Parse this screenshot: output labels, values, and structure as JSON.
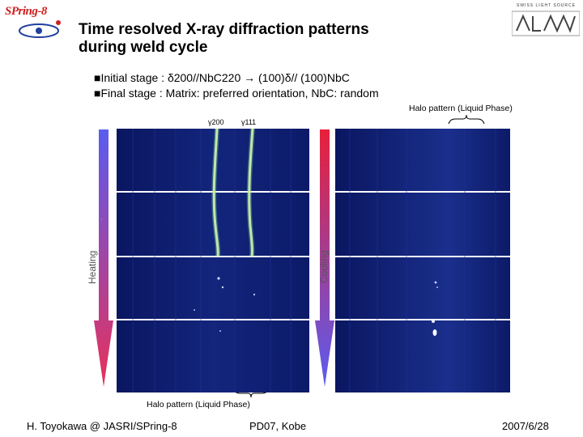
{
  "header": {
    "logo_left_text": "SPring-8",
    "logo_right_text": "SWISS LIGHT SOURCE",
    "title_line1": "Time resolved X-ray diffraction patterns",
    "title_line2": "during weld cycle"
  },
  "bullets": [
    "■Initial stage : δ200//NbC220 → (100)δ// (100)NbC",
    "■Final stage : Matrix: preferred orientation, NbC: random"
  ],
  "labels": {
    "halo_top": "Halo pattern (Liquid Phase)",
    "halo_bottom": "Halo pattern (Liquid Phase)",
    "peak_gamma200": "γ200",
    "peak_gamma111": "γ111",
    "heating": "Heating",
    "cooling": "Cooling"
  },
  "colors": {
    "arrow_top_heating": "#5a5cf0",
    "arrow_bottom_heating": "#e8305a",
    "arrow_top_cooling": "#e8203a",
    "arrow_bottom_cooling": "#5a5cf0",
    "diffraction_bg": "#0d1d6e"
  },
  "footer": {
    "author": "H. Toyokawa @ JASRI/SPring-8",
    "event": "PD07, Kobe",
    "date": "2007/6/28"
  }
}
